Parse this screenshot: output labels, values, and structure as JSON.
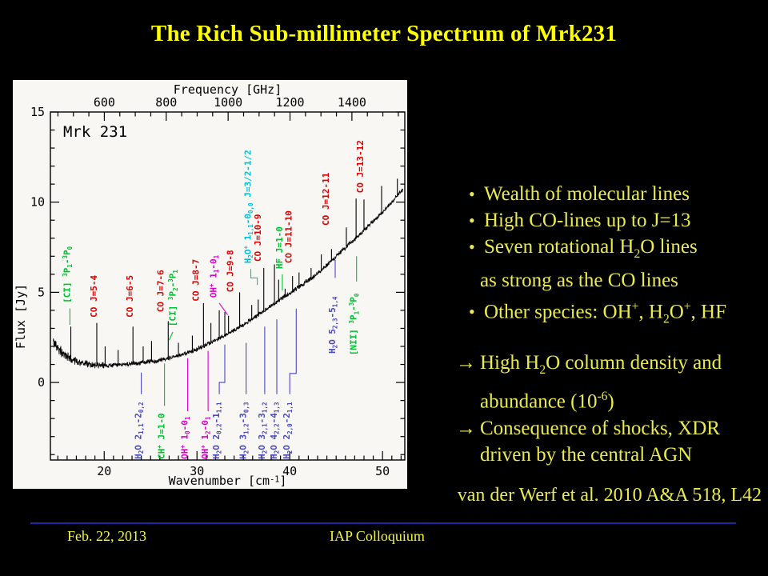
{
  "slide": {
    "title": "The Rich Sub-millimeter Spectrum of Mrk231",
    "bullets": [
      {
        "m": "•",
        "t": "Wealth of molecular lines"
      },
      {
        "m": "•",
        "t": "High CO-lines up to J=13"
      },
      {
        "m": "•",
        "t": "Seven rotational H_{2}O lines"
      },
      {
        "m": "",
        "t": "as strong as the CO lines"
      },
      {
        "m": "•",
        "t": "Other species: OH^{+}, H_{2}O^{+}, HF"
      },
      {
        "m": "→",
        "t": "High H_{2}O column density and",
        "gap": true
      },
      {
        "m": "",
        "t": "abundance (10^{-6})"
      },
      {
        "m": "→",
        "t": "Consequence of shocks, XDR"
      },
      {
        "m": "",
        "t": "driven by the central AGN"
      }
    ],
    "citation": "van der Werf et al. 2010 A&A 518, L42",
    "footer": {
      "date": "Feb. 22, 2013",
      "event": "IAP Colloquium"
    }
  },
  "colors": {
    "title_yellow": "#ffff00",
    "body_yellow": "#ebeb4f",
    "footer_rule_blue": "#2626a0",
    "panel_bg": "#f8f7f3",
    "trace_black": "#000000",
    "red": "#dd0000",
    "green": "#00c032",
    "magenta": "#dd00cc",
    "cyan": "#00c0d8",
    "blue": "#4848c0"
  },
  "chart_data": {
    "type": "line",
    "title_inset": "Mrk 231",
    "xlabel": "Wavenumber [cm^{-1}]",
    "xlabel_top": "Frequency [GHz]",
    "ylabel": "Flux [Jy]",
    "xlim": [
      14.2,
      52.4
    ],
    "ylim": [
      -4.3,
      15
    ],
    "x_ticks": [
      20,
      30,
      40,
      50
    ],
    "top_ticks_ghz": [
      600,
      800,
      1000,
      1200,
      1400
    ],
    "y_ticks": [
      0,
      5,
      10,
      15
    ],
    "ghz_per_wavenumber": 29.9792,
    "continuum": [
      [
        14.5,
        2.25
      ],
      [
        15,
        1.9
      ],
      [
        15.5,
        1.65
      ],
      [
        16,
        1.45
      ],
      [
        16.5,
        1.3
      ],
      [
        17,
        1.2
      ],
      [
        18,
        1.05
      ],
      [
        19,
        0.95
      ],
      [
        20,
        0.92
      ],
      [
        21,
        0.95
      ],
      [
        22,
        1.0
      ],
      [
        23,
        1.05
      ],
      [
        24,
        1.1
      ],
      [
        25,
        1.15
      ],
      [
        26,
        1.25
      ],
      [
        27,
        1.35
      ],
      [
        28,
        1.5
      ],
      [
        29,
        1.65
      ],
      [
        30,
        1.85
      ],
      [
        31,
        2.1
      ],
      [
        32,
        2.35
      ],
      [
        33,
        2.6
      ],
      [
        34,
        2.9
      ],
      [
        35,
        3.2
      ],
      [
        36,
        3.55
      ],
      [
        37,
        3.9
      ],
      [
        38,
        4.25
      ],
      [
        39,
        4.6
      ],
      [
        40,
        4.95
      ],
      [
        41,
        5.3
      ],
      [
        42,
        5.65
      ],
      [
        43,
        6.05
      ],
      [
        44,
        6.5
      ],
      [
        45,
        7.0
      ],
      [
        46,
        7.5
      ],
      [
        47,
        7.95
      ],
      [
        48,
        8.45
      ],
      [
        49,
        8.95
      ],
      [
        50,
        9.45
      ],
      [
        51,
        10.0
      ],
      [
        52,
        10.6
      ],
      [
        52.2,
        10.7
      ]
    ],
    "spikes": [
      [
        16.4,
        3.1
      ],
      [
        19.2,
        3.3
      ],
      [
        20.1,
        2.0
      ],
      [
        21.5,
        1.8
      ],
      [
        23.1,
        3.1
      ],
      [
        24.2,
        2.0
      ],
      [
        25.1,
        2.3
      ],
      [
        26.9,
        3.4
      ],
      [
        28.0,
        2.2
      ],
      [
        29.5,
        2.6
      ],
      [
        30.7,
        4.4
      ],
      [
        31.5,
        3.3
      ],
      [
        32.4,
        4.0
      ],
      [
        33.0,
        3.9
      ],
      [
        33.4,
        3.7
      ],
      [
        34.6,
        5.0
      ],
      [
        35.9,
        4.3
      ],
      [
        36.6,
        4.6
      ],
      [
        37.2,
        6.35
      ],
      [
        38.35,
        6.55
      ],
      [
        38.8,
        5.7
      ],
      [
        39.5,
        5.2
      ],
      [
        40.3,
        5.9
      ],
      [
        41.0,
        6.1
      ],
      [
        42.3,
        6.35
      ],
      [
        43.4,
        7.1
      ],
      [
        44.5,
        7.4
      ],
      [
        46.1,
        8.6
      ],
      [
        47.15,
        10.2
      ],
      [
        48.0,
        10.15
      ],
      [
        49.9,
        10.9
      ],
      [
        51.6,
        11.3
      ]
    ],
    "line_labels": [
      {
        "t": "[CI] ^{3}P_{1}-^{3}P_{0}",
        "c": "green",
        "x": 16.3,
        "y": 4.4,
        "conn": [
          [
            16.3,
            4.1
          ],
          [
            16.3,
            3.2
          ]
        ]
      },
      {
        "t": "CO J=5-4",
        "c": "red",
        "x": 19.2,
        "y": 3.6
      },
      {
        "t": "CO J=6-5",
        "c": "red",
        "x": 23.1,
        "y": 3.6
      },
      {
        "t": "CO J=7-6",
        "c": "red",
        "x": 26.4,
        "y": 3.9
      },
      {
        "t": "[CI] ^{3}P_{2}-^{3}P_{1}",
        "c": "green",
        "x": 27.7,
        "y": 3.1,
        "conn": [
          [
            27.4,
            2.8
          ],
          [
            27.0,
            2.35
          ]
        ]
      },
      {
        "t": "CO J=8-7",
        "c": "red",
        "x": 30.2,
        "y": 4.5
      },
      {
        "t": "OH^{+} 1_{1}-0_{1}",
        "c": "magenta",
        "x": 32.1,
        "y": 4.7,
        "conn": [
          [
            32.4,
            4.4
          ],
          [
            33.3,
            3.75
          ]
        ]
      },
      {
        "t": "CO J=9-8",
        "c": "red",
        "x": 33.9,
        "y": 5.0
      },
      {
        "t": "H_{2}O^{+} 1_{1,1}-0_{0,0} J=3/2-1/2",
        "c": "cyan",
        "x": 35.8,
        "y": 6.6,
        "conn": [
          [
            35.8,
            6.3
          ],
          [
            35.8,
            5.8
          ],
          [
            36.5,
            5.8
          ],
          [
            36.5,
            5.4
          ]
        ]
      },
      {
        "t": "CO J=10-9",
        "c": "red",
        "x": 36.9,
        "y": 6.7
      },
      {
        "t": "HF J=1-0",
        "c": "green",
        "x": 39.2,
        "y": 6.3,
        "conn": [
          [
            39.2,
            6.0
          ],
          [
            39.2,
            5.1
          ]
        ]
      },
      {
        "t": "CO J=11-10",
        "c": "red",
        "x": 40.2,
        "y": 6.6
      },
      {
        "t": "CO J=12-11",
        "c": "red",
        "x": 44.2,
        "y": 8.7
      },
      {
        "t": "CO J=13-12",
        "c": "red",
        "x": 47.9,
        "y": 10.5
      },
      {
        "t": "H_{2}O 5_{2,3}-5_{1,4}",
        "c": "blue",
        "x": 44.9,
        "y": 1.6,
        "conn": [
          [
            44.9,
            5.8
          ],
          [
            44.9,
            6.8
          ]
        ]
      },
      {
        "t": "[NII] ^{3}P_{1}-^{3}P_{0}",
        "c": "green",
        "x": 47.2,
        "y": 1.5,
        "conn": [
          [
            47.2,
            5.6
          ],
          [
            47.2,
            7.0
          ]
        ]
      },
      {
        "t": "H_{2}O 2_{1,1}-2_{0,2}",
        "c": "blue",
        "x": 24.0,
        "y": -4.25,
        "conn": [
          [
            24.0,
            -0.65
          ],
          [
            24.0,
            0.55
          ]
        ]
      },
      {
        "t": "CH^{+} J=1-0",
        "c": "green",
        "x": 26.5,
        "y": -4.25,
        "conn": [
          [
            26.5,
            -1.3
          ],
          [
            26.5,
            1.05
          ]
        ]
      },
      {
        "t": "OH^{+} 1_{0}-0_{1}",
        "c": "magenta",
        "x": 29.0,
        "y": -4.25,
        "conn": [
          [
            29.0,
            -1.6
          ],
          [
            29.0,
            1.35
          ]
        ]
      },
      {
        "t": "OH^{+} 1_{2}-0_{1}",
        "c": "magenta",
        "x": 31.2,
        "y": -4.25,
        "conn": [
          [
            31.2,
            -1.6
          ],
          [
            31.2,
            1.75
          ]
        ]
      },
      {
        "t": "H_{2}O 2_{0,2}-1_{1,1}",
        "c": "blue",
        "x": 32.4,
        "y": -4.25,
        "conn": [
          [
            32.4,
            -0.65
          ],
          [
            32.4,
            0.0
          ],
          [
            33.0,
            0.0
          ],
          [
            33.0,
            2.1
          ]
        ]
      },
      {
        "t": "H_{2}O 3_{1,2}-3_{0,3}",
        "c": "blue",
        "x": 35.3,
        "y": -4.25,
        "conn": [
          [
            35.3,
            -0.65
          ],
          [
            35.3,
            2.2
          ]
        ]
      },
      {
        "t": "H_{2}O 3_{2,1}-3_{1,2}",
        "c": "blue",
        "x": 37.3,
        "y": -4.25,
        "conn": [
          [
            37.3,
            -0.65
          ],
          [
            37.3,
            3.1
          ]
        ]
      },
      {
        "t": "H_{2}O 4_{2,2}-4_{1,3}",
        "c": "blue",
        "x": 38.6,
        "y": -4.25,
        "conn": [
          [
            38.6,
            -0.65
          ],
          [
            38.6,
            3.5
          ]
        ]
      },
      {
        "t": "H_{2}O 2_{2,0}-2_{1,1}",
        "c": "blue",
        "x": 40.0,
        "y": -4.25,
        "conn": [
          [
            40.0,
            -0.65
          ],
          [
            40.0,
            0.5
          ],
          [
            40.7,
            0.5
          ],
          [
            40.7,
            4.1
          ]
        ]
      }
    ]
  }
}
